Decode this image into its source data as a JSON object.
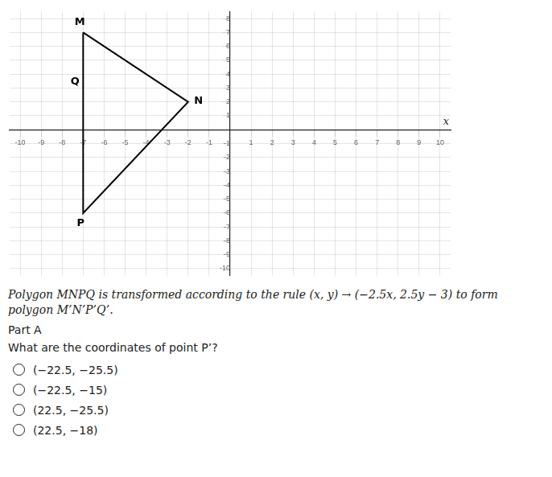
{
  "chart_data": {
    "type": "polygon",
    "title": "Polygon MNPQ is transformed according to the rule (x, y) → (−2.5x, 2.5y − 3) to form polygon M’N’P’Q’.",
    "subtitle": "Part A",
    "question": "What are the coordinates of point P’?",
    "options": [
      "(−22.5, −25.5)",
      "(−22.5, −15)",
      "(22.5, −25.5)",
      "(22.5, −18)"
    ],
    "xlabel": "x",
    "x": [
      -7,
      -2,
      -7,
      -7
    ],
    "values": [
      7,
      2,
      -6,
      3
    ],
    "labels": [
      "M",
      "N",
      "P",
      "Q"
    ],
    "color": "#000000",
    "xlim": [
      -10.5,
      10.5
    ],
    "ylim": [
      -10.5,
      8.5
    ],
    "xticks": [
      -10,
      -9,
      -8,
      -7,
      -6,
      -5,
      -4,
      -3,
      -2,
      -1,
      1,
      2,
      3,
      4,
      5,
      6,
      7,
      8,
      9,
      10
    ],
    "yticks": [
      -10,
      -9,
      -8,
      -7,
      -6,
      -5,
      -4,
      -3,
      -2,
      -1,
      1,
      2,
      3,
      4,
      5,
      6,
      7,
      8
    ],
    "grid": true
  }
}
